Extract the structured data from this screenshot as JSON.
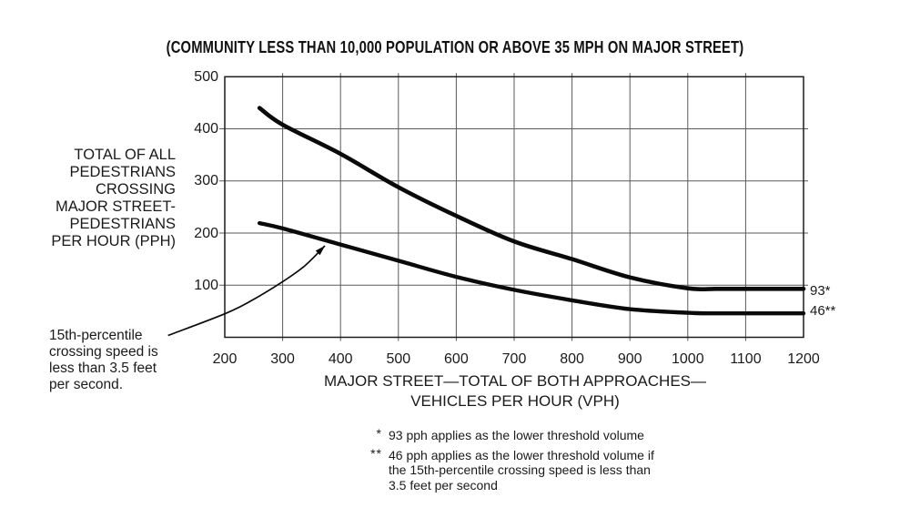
{
  "title": "(COMMUNITY LESS THAN 10,000 POPULATION OR ABOVE 35 MPH ON MAJOR STREET)",
  "y_axis_title_lines": [
    "TOTAL OF ALL",
    "PEDESTRIANS",
    "CROSSING",
    "MAJOR STREET-",
    "PEDESTRIANS",
    "PER HOUR (PPH)"
  ],
  "x_axis_title_lines": [
    "MAJOR STREET—TOTAL OF BOTH APPROACHES—",
    "VEHICLES PER HOUR (VPH)"
  ],
  "right_labels": {
    "upper": "93*",
    "lower": "46**"
  },
  "annotation": {
    "lines": [
      "15th-percentile",
      "crossing speed is",
      "less than 3.5 feet",
      "per second."
    ],
    "arrow_points_vph_pph": [
      [
        102,
        3.5
      ],
      [
        200,
        45
      ],
      [
        247,
        71
      ],
      [
        299,
        106
      ],
      [
        338,
        137
      ],
      [
        373,
        175.5
      ]
    ]
  },
  "footnotes": [
    {
      "marker": "*",
      "lines": [
        "93 pph applies as the lower threshold volume"
      ]
    },
    {
      "marker": "**",
      "lines": [
        "46 pph applies as the lower threshold volume if",
        "the 15th-percentile crossing speed is less than",
        "3.5 feet per second"
      ]
    }
  ],
  "colors": {
    "background": "#ffffff",
    "text": "#1a1a1a",
    "grid": "#5a5a5a",
    "border": "#1c1c1c",
    "curve": "#0a0a0a"
  },
  "chart_data": {
    "type": "line",
    "title": "(COMMUNITY LESS THAN 10,000 POPULATION OR ABOVE 35 MPH ON MAJOR STREET)",
    "xlabel": "MAJOR STREET—TOTAL OF BOTH APPROACHES—VEHICLES PER HOUR (VPH)",
    "ylabel": "TOTAL OF ALL PEDESTRIANS CROSSING MAJOR STREET-PEDESTRIANS PER HOUR (PPH)",
    "xlim": [
      200,
      1200
    ],
    "ylim": [
      0,
      500
    ],
    "x_ticks": [
      200,
      300,
      400,
      500,
      600,
      700,
      800,
      900,
      1000,
      1100,
      1200
    ],
    "y_ticks": [
      100,
      200,
      300,
      400,
      500
    ],
    "grid": true,
    "legend": "none",
    "series": [
      {
        "name": "upper-threshold-curve (lower threshold 93 pph)",
        "end_label": "93*",
        "points": [
          [
            260,
            440
          ],
          [
            300,
            408
          ],
          [
            400,
            352
          ],
          [
            500,
            288
          ],
          [
            600,
            233
          ],
          [
            700,
            184
          ],
          [
            800,
            150
          ],
          [
            900,
            115
          ],
          [
            1000,
            94
          ],
          [
            1050,
            93
          ],
          [
            1120,
            93
          ],
          [
            1200,
            93
          ]
        ]
      },
      {
        "name": "reduced-crossing-speed-curve (lower threshold 46 pph)",
        "end_label": "46**",
        "points": [
          [
            260,
            219
          ],
          [
            300,
            209
          ],
          [
            400,
            178
          ],
          [
            500,
            147
          ],
          [
            600,
            116
          ],
          [
            700,
            91
          ],
          [
            800,
            71
          ],
          [
            900,
            54
          ],
          [
            1000,
            47
          ],
          [
            1050,
            46
          ],
          [
            1120,
            46
          ],
          [
            1200,
            46
          ]
        ]
      }
    ]
  }
}
